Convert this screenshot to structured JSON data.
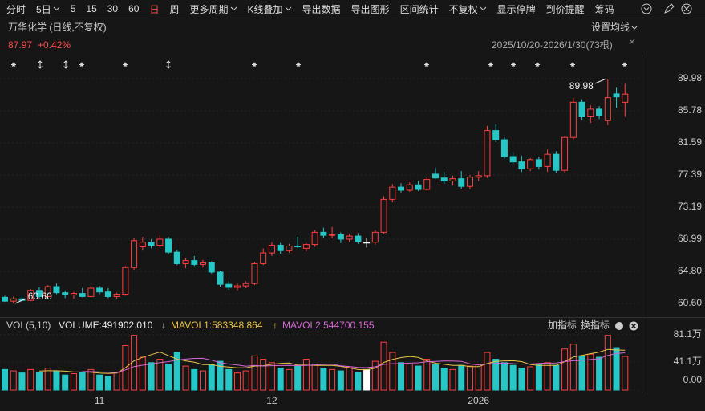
{
  "toolbar": {
    "items": [
      {
        "label": "分时"
      },
      {
        "label": "5日",
        "menu": true
      },
      {
        "label": "5"
      },
      {
        "label": "15"
      },
      {
        "label": "30"
      },
      {
        "label": "60"
      },
      {
        "label": "日",
        "active": true
      },
      {
        "label": "周"
      },
      {
        "label": "更多周期",
        "menu": true
      },
      {
        "label": "K线叠加",
        "menu": true
      },
      {
        "label": "导出数据"
      },
      {
        "label": "导出图形"
      },
      {
        "label": "区间统计"
      },
      {
        "label": "不复权",
        "menu": true
      },
      {
        "label": "显示停牌"
      },
      {
        "label": "到价提醒"
      },
      {
        "label": "筹码"
      }
    ]
  },
  "header": {
    "title": "万华化学 (日线,不复权)",
    "price": "87.97",
    "change": "+0.42%",
    "range": "2025/10/20-2026/1/30(73根)",
    "ma_settings": "设置均线"
  },
  "volume_header": {
    "indicator": "VOL(5,10)",
    "volume": "VOLUME:491902.010",
    "mavol1": "MAVOL1:583348.864",
    "mavol1_arrow": "↓",
    "mavol2": "MAVOL2:544700.155",
    "mavol2_arrow": "↑",
    "add": "加指标",
    "switch": "换指标"
  },
  "chart_data": {
    "type": "candlestick",
    "categories": [
      null,
      null,
      null,
      null,
      null,
      null,
      null,
      null,
      null,
      null,
      null,
      "11",
      null,
      null,
      null,
      null,
      null,
      null,
      null,
      null,
      null,
      null,
      null,
      null,
      null,
      null,
      null,
      null,
      null,
      null,
      null,
      "12",
      null,
      null,
      null,
      null,
      null,
      null,
      null,
      null,
      null,
      null,
      null,
      null,
      null,
      null,
      null,
      null,
      null,
      null,
      null,
      null,
      null,
      null,
      null,
      "2026",
      null,
      null,
      null,
      null,
      null,
      null,
      null,
      null,
      null,
      null,
      null,
      null,
      null,
      null,
      null,
      null,
      null
    ],
    "open": [
      61.4,
      60.9,
      61.2,
      61.0,
      62.3,
      61.5,
      62.8,
      62.0,
      61.7,
      61.9,
      61.5,
      62.6,
      62.1,
      61.5,
      61.8,
      65.3,
      68.0,
      68.6,
      68.2,
      69.0,
      67.3,
      65.8,
      66.2,
      65.7,
      65.9,
      64.7,
      63.1,
      62.7,
      62.9,
      63.2,
      65.8,
      67.2,
      68.2,
      67.5,
      68.1,
      67.8,
      68.3,
      69.9,
      69.5,
      69.6,
      69.0,
      69.4,
      68.6,
      68.6,
      69.9,
      74.2,
      75.8,
      75.4,
      76.1,
      75.5,
      77.5,
      77.0,
      76.6,
      76.9,
      75.9,
      77.1,
      77.3,
      83.2,
      82.0,
      79.8,
      79.1,
      78.2,
      79.4,
      78.5,
      80.1,
      78.0,
      82.3,
      86.9,
      85.0,
      86.0,
      84.5,
      88.0,
      86.9
    ],
    "high": [
      61.6,
      61.5,
      61.6,
      62.5,
      62.7,
      63.0,
      63.2,
      62.3,
      62.1,
      62.6,
      62.9,
      62.9,
      62.6,
      62.0,
      65.5,
      69.2,
      69.3,
      69.0,
      69.5,
      69.3,
      67.6,
      66.5,
      66.8,
      66.3,
      66.1,
      64.9,
      63.5,
      63.2,
      63.5,
      66.0,
      67.8,
      68.6,
      68.5,
      68.4,
      69.3,
      68.5,
      70.2,
      70.5,
      70.6,
      69.9,
      69.7,
      69.8,
      69.2,
      70.2,
      74.6,
      76.2,
      76.3,
      76.4,
      76.6,
      77.1,
      78.3,
      77.8,
      77.3,
      77.9,
      77.4,
      77.9,
      83.8,
      84.0,
      82.3,
      80.4,
      79.9,
      79.6,
      79.8,
      80.7,
      80.5,
      82.5,
      87.5,
      87.3,
      86.5,
      86.4,
      89.98,
      88.8,
      89.3
    ],
    "low": [
      60.8,
      60.6,
      60.8,
      60.9,
      61.3,
      61.3,
      61.8,
      61.3,
      61.2,
      61.4,
      61.4,
      61.8,
      61.3,
      61.2,
      61.6,
      65.0,
      67.5,
      67.8,
      67.9,
      67.0,
      65.6,
      65.2,
      65.5,
      65.3,
      64.5,
      62.8,
      62.4,
      62.3,
      62.6,
      63.0,
      65.6,
      66.8,
      67.1,
      67.2,
      67.8,
      67.4,
      68.0,
      69.2,
      69.1,
      68.5,
      68.6,
      68.4,
      67.9,
      68.3,
      69.7,
      73.8,
      75.1,
      75.2,
      75.3,
      75.3,
      76.9,
      76.2,
      76.0,
      75.6,
      75.5,
      76.6,
      77.0,
      81.7,
      79.5,
      78.8,
      77.8,
      77.9,
      78.1,
      77.8,
      77.6,
      77.6,
      82.0,
      84.6,
      84.2,
      84.7,
      83.9,
      86.2,
      85.0
    ],
    "close": [
      60.9,
      61.2,
      61.0,
      62.3,
      61.5,
      62.8,
      62.0,
      61.7,
      61.9,
      61.5,
      62.6,
      62.1,
      61.5,
      61.8,
      65.3,
      68.8,
      68.6,
      68.2,
      69.0,
      67.3,
      65.8,
      66.2,
      65.7,
      65.9,
      64.7,
      63.1,
      62.7,
      62.9,
      63.2,
      65.8,
      67.2,
      68.2,
      67.5,
      68.1,
      68.0,
      68.3,
      69.9,
      69.5,
      69.6,
      69.0,
      69.4,
      68.7,
      68.6,
      69.9,
      74.2,
      75.8,
      75.4,
      76.1,
      75.5,
      76.8,
      77.0,
      76.6,
      76.9,
      75.9,
      77.1,
      77.3,
      83.2,
      82.0,
      79.8,
      79.1,
      78.2,
      79.4,
      78.5,
      80.1,
      78.0,
      82.3,
      86.9,
      85.0,
      86.0,
      85.2,
      87.5,
      87.6,
      87.97
    ],
    "up_color": "#ff4040",
    "down_color": "#27c7c7",
    "flat_color": "#ffffff",
    "ylim": [
      59.13,
      91.03
    ],
    "yticks": [
      89.98,
      85.78,
      81.59,
      77.39,
      73.19,
      68.99,
      {
        "value": 64.8,
        "label": "64.80"
      },
      {
        "value": 60.6,
        "label": "60.60"
      }
    ],
    "annotations": {
      "high": "89.98",
      "low": "60.60"
    },
    "volume": [
      30,
      28,
      25,
      30,
      26,
      32,
      28,
      22,
      24,
      26,
      30,
      22,
      20,
      26,
      65,
      80,
      48,
      40,
      45,
      38,
      55,
      35,
      30,
      28,
      38,
      42,
      30,
      25,
      28,
      50,
      45,
      40,
      32,
      30,
      35,
      45,
      38,
      32,
      30,
      28,
      34,
      26,
      30,
      42,
      70,
      55,
      40,
      38,
      35,
      45,
      38,
      32,
      30,
      36,
      35,
      38,
      55,
      45,
      40,
      36,
      32,
      34,
      38,
      40,
      36,
      60,
      67,
      50,
      52.5,
      48,
      80,
      62,
      49.19
    ],
    "mavol1": [
      null,
      null,
      null,
      null,
      27.8,
      28.2,
      28.2,
      27.6,
      26.4,
      26.4,
      26,
      24.8,
      24.4,
      24.8,
      32.6,
      42.6,
      47.8,
      51.8,
      55.6,
      50.2,
      45.2,
      42.6,
      40.6,
      37.2,
      37.2,
      34.6,
      33.6,
      32.6,
      32.6,
      35,
      35.6,
      37.6,
      39,
      39.4,
      36.4,
      36.4,
      36,
      36,
      36,
      34.6,
      32.4,
      30,
      29.6,
      32,
      40.4,
      44.6,
      47.4,
      49,
      47.6,
      42.6,
      39.2,
      37.6,
      36,
      36.2,
      34.2,
      34.2,
      38.8,
      41.8,
      42.6,
      42.8,
      41.6,
      37.4,
      36,
      36,
      36,
      41.6,
      48.2,
      50.6,
      53.1,
      55.5,
      59.5,
      58.5,
      58.33
    ],
    "mavol2": [
      null,
      null,
      null,
      null,
      null,
      null,
      null,
      null,
      null,
      27.1,
      27.1,
      26.5,
      26,
      25.6,
      29.5,
      34.3,
      36.3,
      38.1,
      40.2,
      41.4,
      43.9,
      45.2,
      46.2,
      46.4,
      43.7,
      39.9,
      38.1,
      36.6,
      34.9,
      36.1,
      35.1,
      35.6,
      35.8,
      36,
      35.7,
      36,
      36.8,
      37.5,
      37.7,
      35.5,
      34.4,
      33,
      32.8,
      34,
      37.5,
      38.5,
      38.7,
      39.3,
      39.8,
      41.5,
      41.9,
      42.5,
      42.5,
      41.9,
      38.4,
      36.7,
      38.2,
      38.9,
      39.4,
      38.5,
      37.9,
      38.1,
      38.9,
      39.3,
      39.4,
      41.6,
      42.8,
      43.3,
      44.55,
      45.75,
      50.55,
      53.35,
      54.47
    ],
    "mavol1_color": "#e8c34a",
    "mavol2_color": "#d466d4",
    "vol_ylim": [
      0,
      96
    ],
    "vol_yticks": [
      {
        "value": 81.1,
        "label": "81.1万"
      },
      {
        "value": 41.1,
        "label": "41.1万"
      },
      {
        "value": 0,
        "label": "0.00"
      }
    ]
  }
}
